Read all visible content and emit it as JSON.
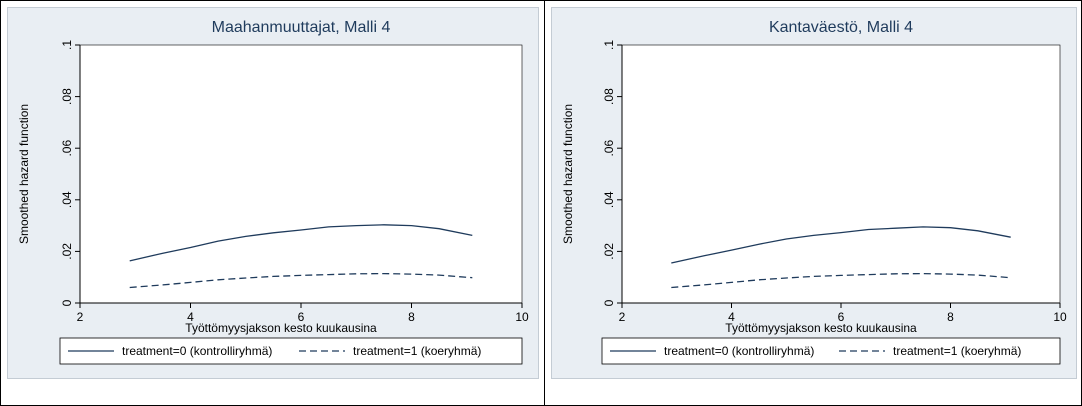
{
  "chart_data": [
    {
      "type": "line",
      "title": "Maahanmuuttajat, Malli 4",
      "xlabel": "Työttömyysjakson kesto kuukausina",
      "ylabel": "Smoothed hazard function",
      "xlim": [
        2,
        10
      ],
      "ylim": [
        0,
        0.1
      ],
      "x_ticks": [
        2,
        4,
        6,
        8,
        10
      ],
      "x_tick_labels": [
        "2",
        "4",
        "6",
        "8",
        "10"
      ],
      "y_ticks": [
        0,
        0.02,
        0.04,
        0.06,
        0.08,
        0.1
      ],
      "y_tick_labels": [
        "0",
        ".02",
        ".04",
        ".06",
        ".08",
        ".1"
      ],
      "grid": false,
      "legend_position": "bottom",
      "series": [
        {
          "name": "treatment=0 (kontrolliryhmä)",
          "style": "solid",
          "x": [
            2.9,
            3.5,
            4.0,
            4.5,
            5.0,
            5.5,
            6.0,
            6.5,
            7.0,
            7.5,
            8.0,
            8.5,
            9.1
          ],
          "y": [
            0.0163,
            0.0193,
            0.0215,
            0.024,
            0.0258,
            0.0272,
            0.0283,
            0.0295,
            0.03,
            0.0303,
            0.03,
            0.0288,
            0.0262
          ]
        },
        {
          "name": "treatment=1 (koeryhmä)",
          "style": "dashed",
          "x": [
            2.9,
            3.5,
            4.0,
            4.5,
            5.0,
            5.5,
            6.0,
            6.5,
            7.0,
            7.5,
            8.0,
            8.5,
            9.1
          ],
          "y": [
            0.006,
            0.007,
            0.008,
            0.009,
            0.0097,
            0.0103,
            0.0107,
            0.011,
            0.0113,
            0.0114,
            0.0112,
            0.0108,
            0.0098
          ]
        }
      ]
    },
    {
      "type": "line",
      "title": "Kantaväestö, Malli 4",
      "xlabel": "Työttömyysjakson kesto kuukausina",
      "ylabel": "Smoothed hazard function",
      "xlim": [
        2,
        10
      ],
      "ylim": [
        0,
        0.1
      ],
      "x_ticks": [
        2,
        4,
        6,
        8,
        10
      ],
      "x_tick_labels": [
        "2",
        "4",
        "6",
        "8",
        "10"
      ],
      "y_ticks": [
        0,
        0.02,
        0.04,
        0.06,
        0.08,
        0.1
      ],
      "y_tick_labels": [
        "0",
        ".02",
        ".04",
        ".06",
        ".08",
        ".1"
      ],
      "grid": false,
      "legend_position": "bottom",
      "series": [
        {
          "name": "treatment=0 (kontrolliryhmä)",
          "style": "solid",
          "x": [
            2.9,
            3.5,
            4.0,
            4.5,
            5.0,
            5.5,
            6.0,
            6.5,
            7.0,
            7.5,
            8.0,
            8.5,
            9.1
          ],
          "y": [
            0.0155,
            0.0183,
            0.0205,
            0.0228,
            0.0248,
            0.0262,
            0.0273,
            0.0285,
            0.029,
            0.0295,
            0.0292,
            0.028,
            0.0255
          ]
        },
        {
          "name": "treatment=1 (koeryhmä)",
          "style": "dashed",
          "x": [
            2.9,
            3.5,
            4.0,
            4.5,
            5.0,
            5.5,
            6.0,
            6.5,
            7.0,
            7.5,
            8.0,
            8.5,
            9.1
          ],
          "y": [
            0.006,
            0.007,
            0.008,
            0.009,
            0.0097,
            0.0103,
            0.0107,
            0.011,
            0.0113,
            0.0114,
            0.0112,
            0.0108,
            0.0098
          ]
        }
      ]
    }
  ],
  "colors": {
    "panel_bg": "#e9eef3",
    "plot_bg": "#ffffff",
    "series_line": "#1f3b5c",
    "title_text": "#1f3b5c",
    "axis": "#000000"
  }
}
